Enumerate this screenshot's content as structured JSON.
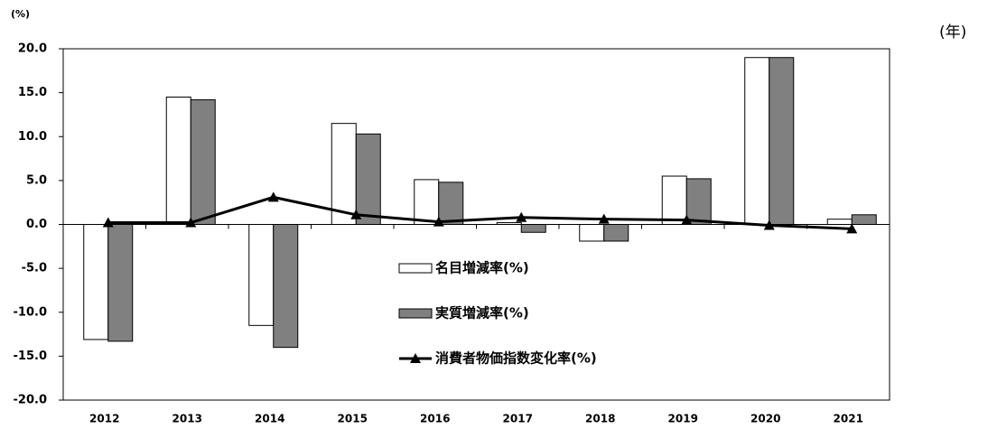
{
  "chart_data": {
    "type": "bar",
    "ylabel": "(%)",
    "xlabel": "(年)",
    "categories": [
      "2012",
      "2013",
      "2014",
      "2015",
      "2016",
      "2017",
      "2018",
      "2019",
      "2020",
      "2021"
    ],
    "series": [
      {
        "name": "名目増減率(%)",
        "color": "#ffffff",
        "values": [
          -13.1,
          14.5,
          -11.5,
          11.5,
          5.1,
          0.2,
          -1.9,
          5.5,
          19.0,
          0.6
        ]
      },
      {
        "name": "実質増減率(%)",
        "color": "#808080",
        "values": [
          -13.3,
          14.2,
          -14.0,
          10.3,
          4.8,
          -0.9,
          -1.9,
          5.2,
          19.0,
          1.1
        ]
      },
      {
        "name": "消費者物価指数変化率(%)",
        "color": "#000000",
        "type": "line",
        "values": [
          0.2,
          0.2,
          3.1,
          1.1,
          0.3,
          0.8,
          0.6,
          0.5,
          -0.1,
          -0.5
        ]
      }
    ],
    "ylim": [
      -20,
      20
    ],
    "yticks": [
      {
        "value": -20,
        "label": "-20.0"
      },
      {
        "value": -15,
        "label": "-15.0"
      },
      {
        "value": -10,
        "label": "-10.0"
      },
      {
        "value": -5,
        "label": "-5.0"
      },
      {
        "value": 0,
        "label": "0.0"
      },
      {
        "value": 5,
        "label": "5.0"
      },
      {
        "value": 10,
        "label": "10.0"
      },
      {
        "value": 15,
        "label": "15.0"
      },
      {
        "value": 20,
        "label": "20.0"
      }
    ]
  }
}
